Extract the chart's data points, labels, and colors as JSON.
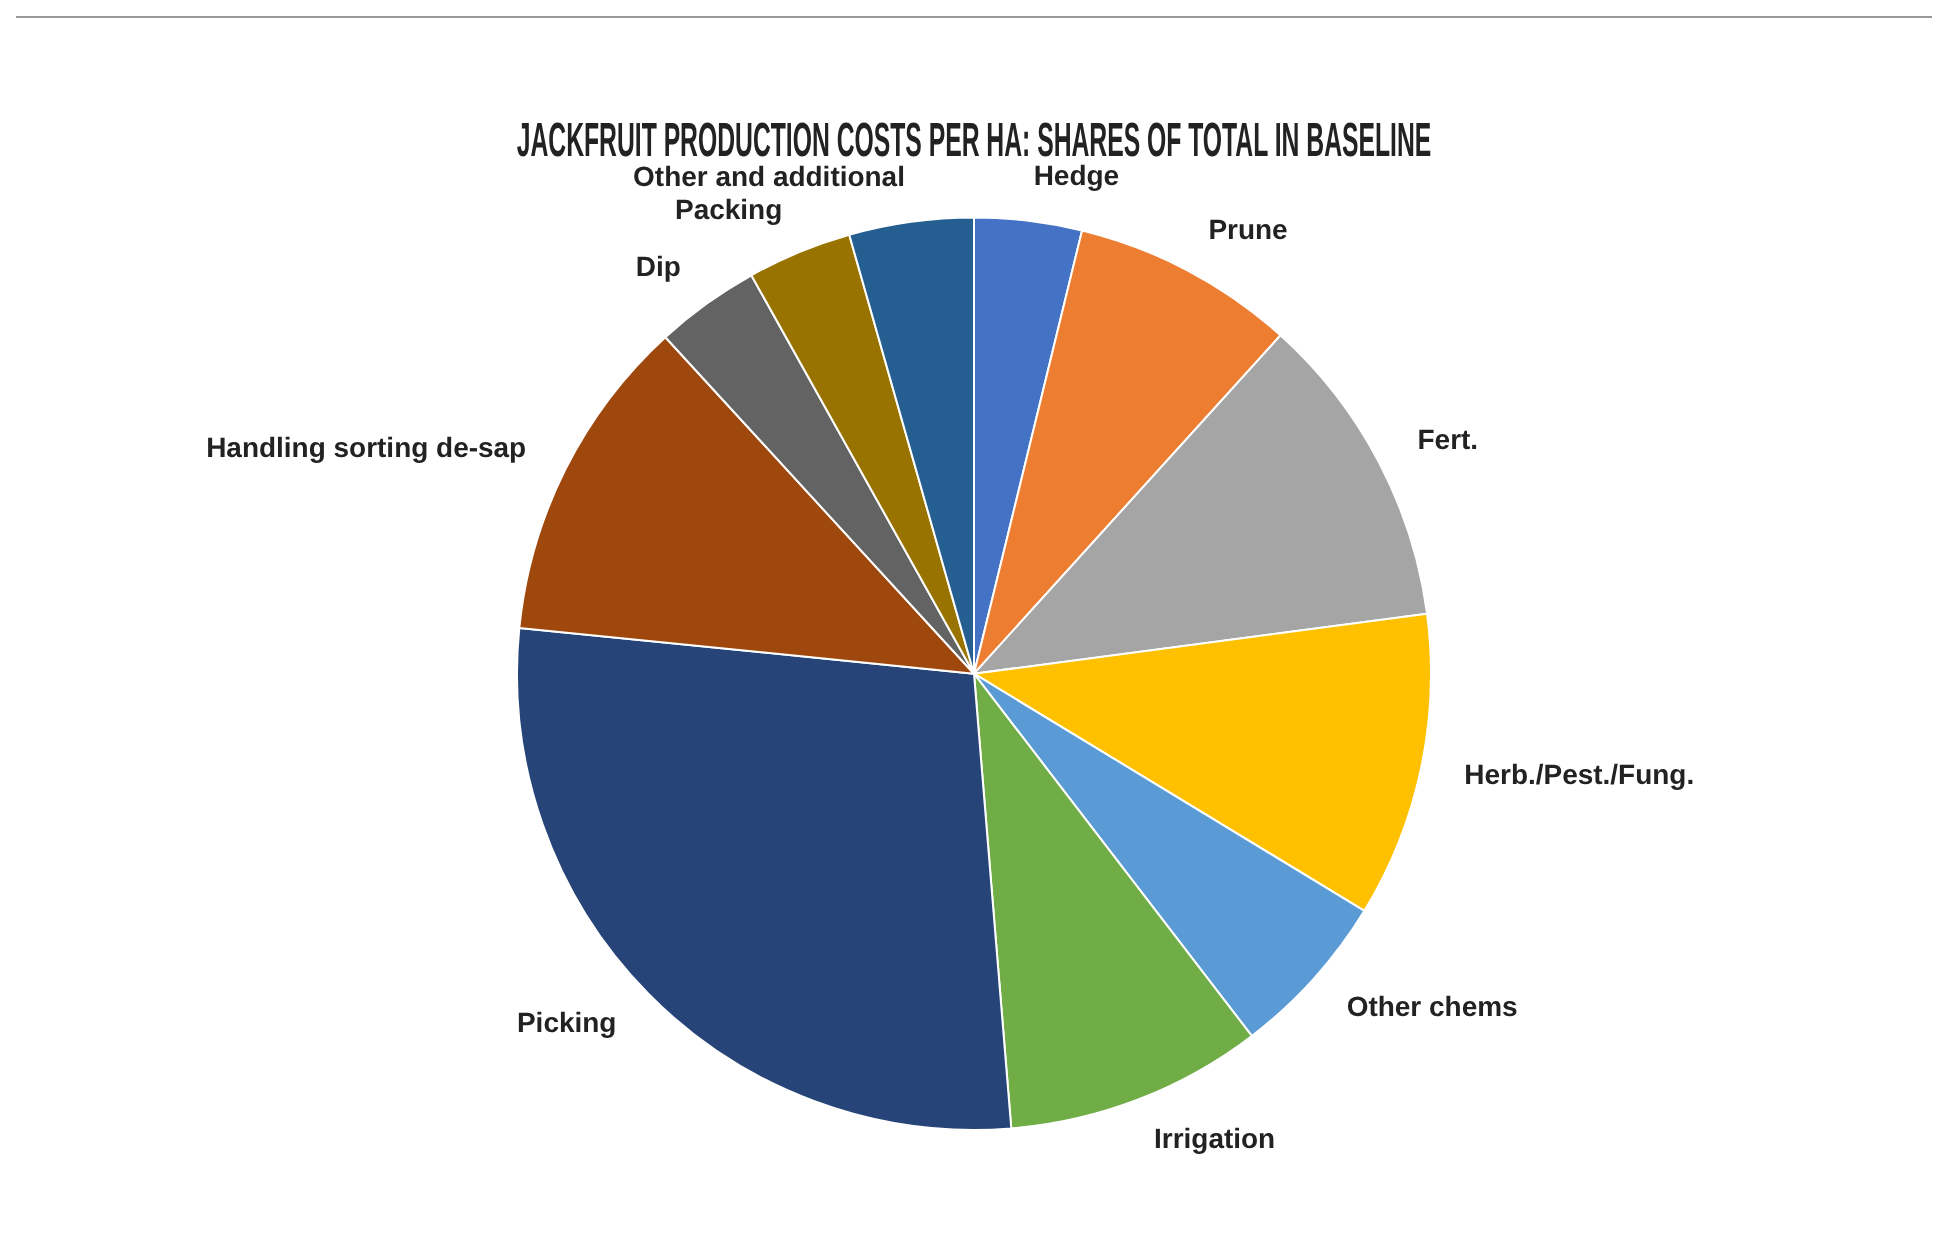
{
  "chart_data": {
    "type": "pie",
    "title": "JACKFRUIT PRODUCTION COSTS PER HA: SHARES OF TOTAL IN BASELINE",
    "categories": [
      "Hedge",
      "Prune",
      "Fert.",
      "Herb./Pest./Fung.",
      "Other chems",
      "Irrigation",
      "Picking",
      "Handling sorting de-sap",
      "Dip",
      "Packing",
      "Other and additional"
    ],
    "values": [
      3.8,
      7.9,
      11.2,
      10.8,
      5.9,
      9.1,
      27.9,
      11.6,
      3.7,
      3.7,
      4.4
    ],
    "colors": [
      "#4472c4",
      "#ed7d31",
      "#a5a5a5",
      "#ffc000",
      "#5b9bd5",
      "#70ad47",
      "#264478",
      "#9e480e",
      "#636363",
      "#997300",
      "#255e91"
    ],
    "legend": false
  }
}
